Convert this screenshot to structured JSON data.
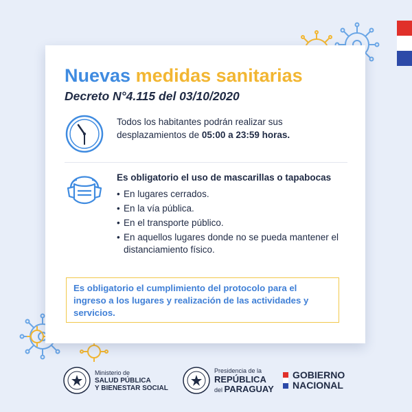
{
  "colors": {
    "blue": "#3f8be0",
    "yellow": "#f2b632",
    "dark": "#1f2a44",
    "flag_red": "#e0302a",
    "flag_white": "#ffffff",
    "flag_blue": "#2d4aa8"
  },
  "header": {
    "title_part1": "Nuevas",
    "title_part2": "medidas sanitarias",
    "subtitle": "Decreto N°4.115 del 03/10/2020"
  },
  "section_hours": {
    "icon": "clock-icon",
    "text_before": "Todos los habitantes podrán realizar sus desplazamientos de ",
    "text_bold": "05:00 a 23:59 horas."
  },
  "section_mask": {
    "icon": "face-mask-icon",
    "heading": "Es obligatorio el uso de mascarillas o tapabocas",
    "items": [
      "En lugares cerrados.",
      "En la vía pública.",
      "En el transporte público.",
      "En aquellos lugares donde no se pueda mantener el distanciamiento físico."
    ]
  },
  "notice": {
    "text": "Es obligatorio el cumplimiento del protocolo para el ingreso a los lugares y realización de las actividades y servicios."
  },
  "footer": {
    "ministry": {
      "line1": "Ministerio de",
      "line2": "SALUD PÚBLICA",
      "line3": "Y BIENESTAR SOCIAL"
    },
    "presidency": {
      "line1": "Presidencia de la",
      "line2": "REPÚBLICA",
      "line3_small": "del",
      "line3_big": "PARAGUAY"
    },
    "government": {
      "line1": "GOBIERNO",
      "line2": "NACIONAL"
    }
  }
}
